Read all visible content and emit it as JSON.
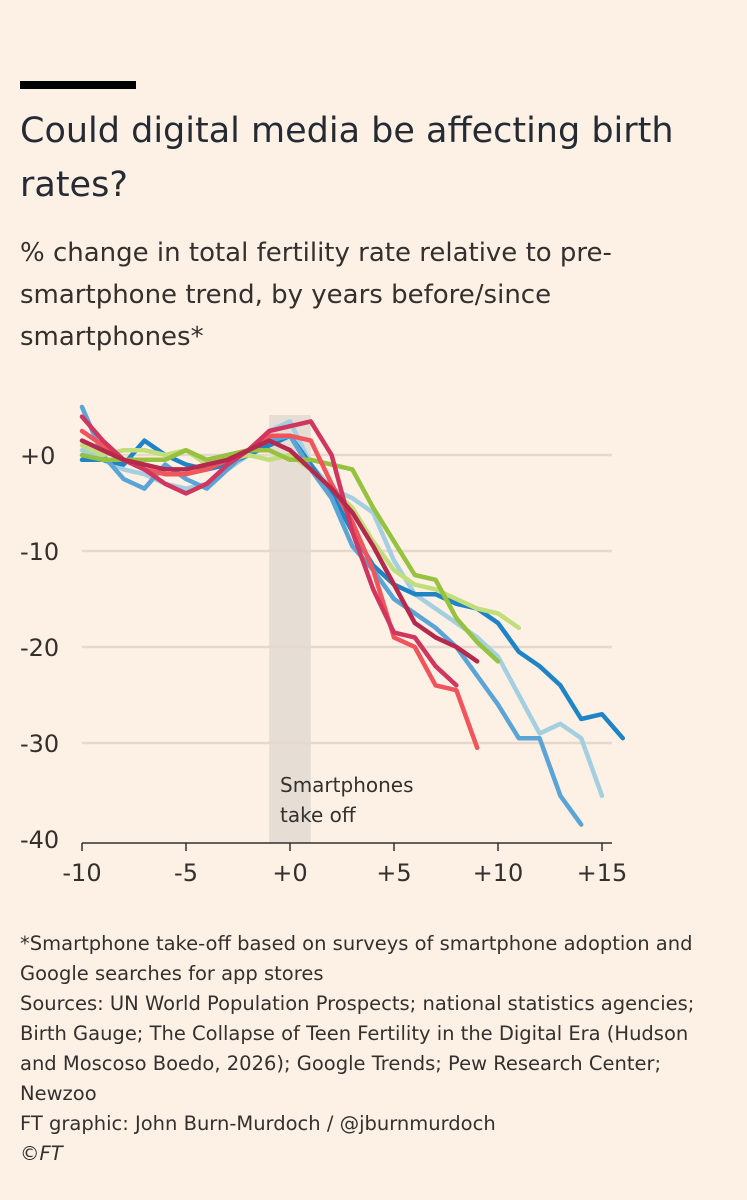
{
  "title": "Could digital media be affecting birth rates?",
  "subtitle": "% change in total fertility rate relative to pre-smartphone trend, by years before/since smartphones*",
  "footnotes": {
    "note": "*Smartphone take-off based on surveys of smartphone adoption and Google searches for app stores",
    "sources": "Sources: UN World Population Prospects; national statistics agencies; Birth Gauge; The Collapse of Teen Fertility in the Digital Era (Hudson and Moscoso Boedo, 2026); Google Trends; Pew Research Center; Newzoo",
    "credit": "FT graphic: John Burn-Murdoch / @jburnmurdoch",
    "copyright": "©FT"
  },
  "chart_data": {
    "type": "line",
    "xlim": [
      -10,
      16
    ],
    "ylim": [
      -40,
      5
    ],
    "xticks": [
      -10,
      -5,
      0,
      5,
      10,
      15
    ],
    "xtick_labels": [
      "-10",
      "-5",
      "+0",
      "+5",
      "+10",
      "+15"
    ],
    "yticks": [
      0,
      -10,
      -20,
      -30,
      -40
    ],
    "ytick_labels": [
      "+0",
      "-10",
      "-20",
      "-30",
      "-40"
    ],
    "grid": true,
    "annotation": {
      "text": [
        "Smartphones",
        "take off"
      ],
      "band": [
        -1,
        1
      ],
      "color": "#e6ddd5"
    },
    "series": [
      {
        "color": "#a3cfe0",
        "x": [
          -10,
          -9,
          -8,
          -7,
          -6,
          -5,
          -4,
          -3,
          -2,
          -1,
          0,
          1,
          2,
          3,
          4,
          5,
          6,
          7,
          8,
          9,
          10,
          11,
          12,
          13,
          14,
          15
        ],
        "y": [
          0.5,
          -0.5,
          -1.5,
          -2,
          -3,
          -3.5,
          -3,
          -1.5,
          0,
          2.5,
          3.5,
          -1,
          -3.5,
          -4.5,
          -6,
          -11,
          -14.5,
          -16,
          -17.5,
          -19,
          -21,
          -25,
          -29,
          -28,
          -29.5,
          -35.5
        ]
      },
      {
        "color": "#1f84c6",
        "x": [
          -10,
          -9,
          -8,
          -7,
          -6,
          -5,
          -4,
          -3,
          -2,
          -1,
          0,
          1,
          2,
          3,
          4,
          5,
          6,
          7,
          8,
          9,
          10,
          11,
          12,
          13,
          14,
          15,
          16
        ],
        "y": [
          -0.5,
          -0.5,
          -1,
          1.5,
          0,
          -1,
          -1.5,
          -1,
          0,
          1,
          2,
          -1,
          -4,
          -8,
          -11.5,
          -13.5,
          -14.5,
          -14.5,
          -15.5,
          -16,
          -17.5,
          -20.5,
          -22,
          -24,
          -27.5,
          -27,
          -29.5
        ]
      },
      {
        "color": "#5ba4d6",
        "x": [
          -10,
          -9,
          -8,
          -7,
          -6,
          -5,
          -4,
          -3,
          -2,
          -1,
          0,
          1,
          2,
          3,
          4,
          5,
          6,
          7,
          8,
          9,
          10,
          11,
          12,
          13,
          14
        ],
        "y": [
          5,
          0,
          -2.5,
          -3.5,
          -1,
          -2.5,
          -3.5,
          -1.5,
          0.5,
          1.5,
          2,
          -1.5,
          -4.5,
          -9.5,
          -12,
          -15,
          -16.5,
          -18,
          -20,
          -23,
          -26,
          -29.5,
          -29.5,
          -35.5,
          -38.5
        ]
      },
      {
        "color": "#c1de7b",
        "x": [
          -10,
          -9,
          -8,
          -7,
          -6,
          -5,
          -4,
          -3,
          -2,
          -1,
          0,
          1,
          2,
          3,
          4,
          5,
          6,
          7,
          8,
          9,
          10,
          11
        ],
        "y": [
          1,
          0,
          0.5,
          0.5,
          0,
          0.5,
          -1,
          -0.5,
          0,
          -0.5,
          0,
          -1.5,
          -3.5,
          -5.5,
          -9,
          -12,
          -13.5,
          -14,
          -15,
          -16,
          -16.5,
          -18
        ]
      },
      {
        "color": "#96c240",
        "x": [
          -10,
          -9,
          -8,
          -7,
          -6,
          -5,
          -4,
          -3,
          -2,
          -1,
          0,
          1,
          2,
          3,
          4,
          5,
          6,
          7,
          8,
          9,
          10
        ],
        "y": [
          0,
          -0.5,
          -0.5,
          -0.5,
          -0.5,
          0.5,
          -0.5,
          0,
          0.5,
          0.5,
          -0.5,
          -0.5,
          -1,
          -1.5,
          -5.5,
          -9,
          -12.5,
          -13,
          -17,
          -19.5,
          -21.5
        ]
      },
      {
        "color": "#f2545b",
        "x": [
          -10,
          -9,
          -8,
          -7,
          -6,
          -5,
          -4,
          -3,
          -2,
          -1,
          0,
          1,
          2,
          3,
          4,
          5,
          6,
          7,
          8,
          9
        ],
        "y": [
          2.5,
          1,
          -0.5,
          -1.5,
          -2,
          -2,
          -1.5,
          -0.5,
          0.5,
          2,
          2,
          1.5,
          -3,
          -7,
          -12,
          -19,
          -20,
          -24,
          -24.5,
          -30.5
        ]
      },
      {
        "color": "#d0365f",
        "x": [
          -10,
          -9,
          -8,
          -7,
          -6,
          -5,
          -4,
          -3,
          -2,
          -1,
          0,
          1,
          2,
          3,
          4,
          5,
          6,
          7,
          8
        ],
        "y": [
          4,
          1.5,
          -0.5,
          -1.5,
          -3,
          -4,
          -3,
          -1,
          0.5,
          2.5,
          3,
          3.5,
          0,
          -8,
          -14,
          -18.5,
          -19,
          -22,
          -24
        ]
      },
      {
        "color": "#b5294d",
        "x": [
          -10,
          -9,
          -8,
          -7,
          -6,
          -5,
          -4,
          -3,
          -2,
          -1,
          0,
          1,
          2,
          3,
          4,
          5,
          6,
          7,
          8,
          9
        ],
        "y": [
          1.5,
          0.5,
          -0.5,
          -1,
          -1.5,
          -1.5,
          -1,
          -0.5,
          0.5,
          1.5,
          0.5,
          -1.5,
          -3.5,
          -6,
          -9.5,
          -13.5,
          -17.5,
          -19,
          -20,
          -21.5
        ]
      }
    ]
  }
}
